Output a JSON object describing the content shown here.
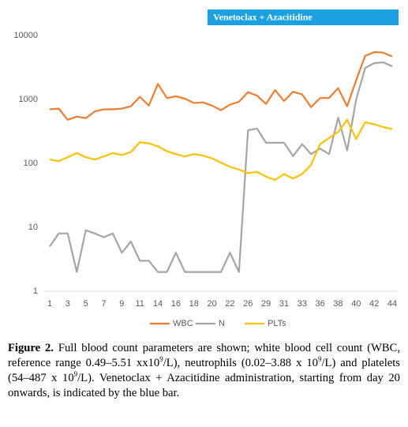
{
  "chart_data": {
    "type": "line",
    "annotation": "Venetoclax + Azacitidine",
    "categories": [
      "1",
      null,
      "3",
      null,
      "5",
      null,
      "7",
      null,
      "9",
      null,
      "11",
      null,
      "14",
      null,
      "16",
      null,
      "18",
      null,
      "20",
      null,
      "22",
      null,
      "26",
      null,
      "29",
      null,
      "31",
      null,
      "33",
      null,
      "36",
      null,
      "38",
      null,
      "40",
      null,
      "42",
      null,
      "44"
    ],
    "series": [
      {
        "name": "WBC",
        "color": "#ED7D31",
        "values": [
          700,
          720,
          480,
          540,
          510,
          650,
          700,
          700,
          720,
          780,
          1100,
          800,
          1750,
          1050,
          1120,
          1030,
          880,
          900,
          800,
          680,
          830,
          920,
          1300,
          1150,
          850,
          1400,
          950,
          1320,
          1200,
          760,
          1050,
          1060,
          1500,
          780,
          2000,
          4800,
          5500,
          5400,
          4700
        ]
      },
      {
        "name": "N",
        "color": "#A5A5A5",
        "values": [
          5,
          8,
          8,
          2,
          9,
          8,
          7,
          8,
          4,
          6,
          3,
          3,
          2,
          2,
          4,
          2,
          2,
          2,
          2,
          2,
          4,
          2,
          330,
          350,
          210,
          210,
          210,
          130,
          200,
          140,
          170,
          140,
          520,
          160,
          1000,
          3100,
          3700,
          3800,
          3300
        ]
      },
      {
        "name": "PLTs",
        "color": "#FFC000",
        "values": [
          115,
          108,
          125,
          145,
          125,
          115,
          128,
          145,
          135,
          150,
          215,
          205,
          185,
          155,
          140,
          128,
          140,
          132,
          120,
          103,
          88,
          80,
          70,
          74,
          62,
          55,
          68,
          58,
          68,
          95,
          200,
          250,
          310,
          480,
          240,
          440,
          410,
          370,
          345
        ]
      }
    ],
    "ylim": [
      1,
      10000
    ],
    "yticks": [
      1,
      10,
      100,
      1000,
      10000
    ],
    "log_scale": true,
    "grid": false,
    "legend": "bottom"
  },
  "caption": {
    "label": "Figure 2.",
    "segments": [
      " Full blood count parameters are shown; white blood cell count (WBC, reference range 0.49–5.51 xx10",
      "9",
      "/L), neutrophils (0.02–3.88 x 10",
      "9",
      "/L) and platelets (54–487 x 10",
      "9",
      "/L). Venetoclax + Azacitidine administration, starting from day 20 onwards, is indicated by the blue bar."
    ]
  }
}
